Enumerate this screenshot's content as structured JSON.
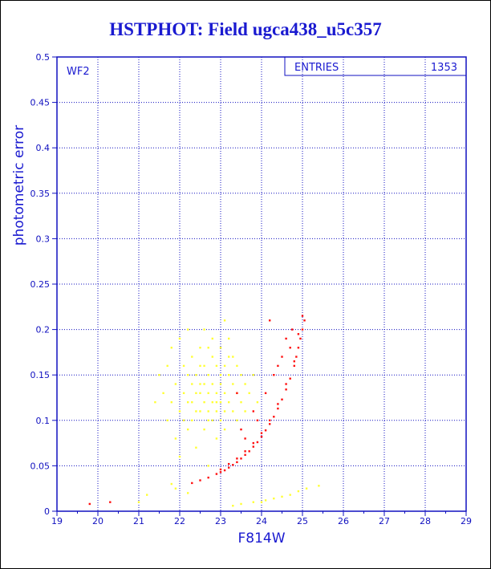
{
  "title": "HSTPHOT: Field ugca438_u5c357",
  "chart_data": {
    "type": "scatter",
    "xlabel": "F814W",
    "ylabel": "photometric error",
    "xlim": [
      19,
      29
    ],
    "ylim": [
      0,
      0.5
    ],
    "xticks": [
      "19",
      "20",
      "21",
      "22",
      "23",
      "24",
      "25",
      "26",
      "27",
      "28",
      "29"
    ],
    "yticks": [
      "0",
      "0.05",
      "0.1",
      "0.15",
      "0.2",
      "0.25",
      "0.3",
      "0.35",
      "0.4",
      "0.45",
      "0.5"
    ],
    "grid": true,
    "panel_label": "WF2",
    "stats_box": {
      "label": "ENTRIES",
      "value": "1353"
    },
    "series": [
      {
        "color": "#ffff33",
        "points": [
          [
            21.4,
            0.12
          ],
          [
            21.5,
            0.15
          ],
          [
            21.6,
            0.13
          ],
          [
            21.7,
            0.1
          ],
          [
            21.7,
            0.16
          ],
          [
            21.8,
            0.12
          ],
          [
            21.8,
            0.18
          ],
          [
            21.9,
            0.08
          ],
          [
            21.9,
            0.14
          ],
          [
            22.0,
            0.11
          ],
          [
            22.0,
            0.19
          ],
          [
            22.0,
            0.06
          ],
          [
            22.1,
            0.13
          ],
          [
            22.1,
            0.16
          ],
          [
            22.2,
            0.09
          ],
          [
            22.2,
            0.12
          ],
          [
            22.2,
            0.2
          ],
          [
            22.3,
            0.14
          ],
          [
            22.3,
            0.17
          ],
          [
            22.3,
            0.1
          ],
          [
            22.4,
            0.07
          ],
          [
            22.4,
            0.13
          ],
          [
            22.4,
            0.15
          ],
          [
            22.5,
            0.11
          ],
          [
            22.5,
            0.18
          ],
          [
            22.5,
            0.14
          ],
          [
            22.6,
            0.09
          ],
          [
            22.6,
            0.12
          ],
          [
            22.6,
            0.16
          ],
          [
            22.6,
            0.2
          ],
          [
            22.7,
            0.13
          ],
          [
            22.7,
            0.1
          ],
          [
            22.7,
            0.15
          ],
          [
            22.7,
            0.05
          ],
          [
            22.8,
            0.12
          ],
          [
            22.8,
            0.17
          ],
          [
            22.8,
            0.14
          ],
          [
            22.8,
            0.19
          ],
          [
            22.9,
            0.11
          ],
          [
            22.9,
            0.13
          ],
          [
            22.9,
            0.16
          ],
          [
            22.9,
            0.08
          ],
          [
            23.0,
            0.12
          ],
          [
            23.0,
            0.14
          ],
          [
            23.0,
            0.18
          ],
          [
            23.0,
            0.1
          ],
          [
            23.1,
            0.13
          ],
          [
            23.1,
            0.16
          ],
          [
            23.1,
            0.21
          ],
          [
            23.1,
            0.09
          ],
          [
            23.2,
            0.12
          ],
          [
            23.2,
            0.15
          ],
          [
            23.2,
            0.19
          ],
          [
            23.3,
            0.11
          ],
          [
            23.3,
            0.14
          ],
          [
            23.3,
            0.17
          ],
          [
            23.4,
            0.13
          ],
          [
            23.4,
            0.1
          ],
          [
            23.4,
            0.16
          ],
          [
            23.5,
            0.12
          ],
          [
            23.5,
            0.15
          ],
          [
            23.6,
            0.14
          ],
          [
            23.6,
            0.11
          ],
          [
            23.7,
            0.13
          ],
          [
            23.8,
            0.15
          ],
          [
            23.9,
            0.12
          ],
          [
            22.1,
            0.1
          ],
          [
            22.3,
            0.12
          ],
          [
            22.5,
            0.13
          ],
          [
            22.7,
            0.11
          ],
          [
            22.9,
            0.12
          ],
          [
            23.1,
            0.11
          ],
          [
            22.4,
            0.11
          ],
          [
            22.6,
            0.14
          ],
          [
            22.8,
            0.1
          ],
          [
            23.0,
            0.15
          ],
          [
            22.2,
            0.15
          ],
          [
            22.5,
            0.16
          ],
          [
            22.7,
            0.18
          ],
          [
            23.2,
            0.17
          ],
          [
            21.8,
            0.03
          ],
          [
            21.9,
            0.025
          ],
          [
            22.2,
            0.02
          ],
          [
            23.5,
            0.008
          ],
          [
            23.8,
            0.01
          ],
          [
            24.1,
            0.012
          ],
          [
            24.3,
            0.014
          ],
          [
            24.5,
            0.016
          ],
          [
            24.7,
            0.018
          ],
          [
            24.9,
            0.022
          ],
          [
            25.1,
            0.025
          ],
          [
            25.4,
            0.028
          ],
          [
            21.0,
            0.01
          ],
          [
            21.2,
            0.018
          ],
          [
            23.3,
            0.006
          ],
          [
            24.0,
            0.01
          ]
        ]
      },
      {
        "color": "#ff1010",
        "points": [
          [
            19.8,
            0.008
          ],
          [
            20.3,
            0.01
          ],
          [
            22.3,
            0.031
          ],
          [
            22.5,
            0.034
          ],
          [
            22.7,
            0.037
          ],
          [
            22.9,
            0.041
          ],
          [
            23.0,
            0.043
          ],
          [
            23.1,
            0.045
          ],
          [
            23.2,
            0.048
          ],
          [
            23.3,
            0.051
          ],
          [
            23.4,
            0.054
          ],
          [
            23.5,
            0.058
          ],
          [
            23.6,
            0.062
          ],
          [
            23.7,
            0.066
          ],
          [
            23.8,
            0.071
          ],
          [
            23.9,
            0.076
          ],
          [
            24.0,
            0.082
          ],
          [
            24.1,
            0.089
          ],
          [
            24.2,
            0.096
          ],
          [
            24.3,
            0.104
          ],
          [
            24.4,
            0.113
          ],
          [
            24.5,
            0.123
          ],
          [
            24.6,
            0.134
          ],
          [
            24.7,
            0.146
          ],
          [
            24.8,
            0.16
          ],
          [
            24.85,
            0.17
          ],
          [
            24.9,
            0.18
          ],
          [
            24.95,
            0.19
          ],
          [
            25.0,
            0.2
          ],
          [
            25.05,
            0.21
          ],
          [
            23.0,
            0.046
          ],
          [
            23.2,
            0.052
          ],
          [
            23.4,
            0.058
          ],
          [
            23.6,
            0.066
          ],
          [
            23.8,
            0.075
          ],
          [
            24.0,
            0.086
          ],
          [
            24.2,
            0.1
          ],
          [
            24.4,
            0.118
          ],
          [
            24.6,
            0.14
          ],
          [
            24.8,
            0.165
          ],
          [
            23.5,
            0.09
          ],
          [
            23.8,
            0.11
          ],
          [
            24.1,
            0.13
          ],
          [
            24.3,
            0.15
          ],
          [
            24.5,
            0.17
          ],
          [
            24.6,
            0.19
          ],
          [
            24.2,
            0.21
          ],
          [
            23.4,
            0.13
          ],
          [
            23.6,
            0.08
          ],
          [
            23.9,
            0.1
          ],
          [
            24.4,
            0.16
          ],
          [
            24.7,
            0.18
          ],
          [
            24.9,
            0.195
          ],
          [
            25.0,
            0.215
          ],
          [
            24.75,
            0.2
          ]
        ]
      }
    ]
  }
}
